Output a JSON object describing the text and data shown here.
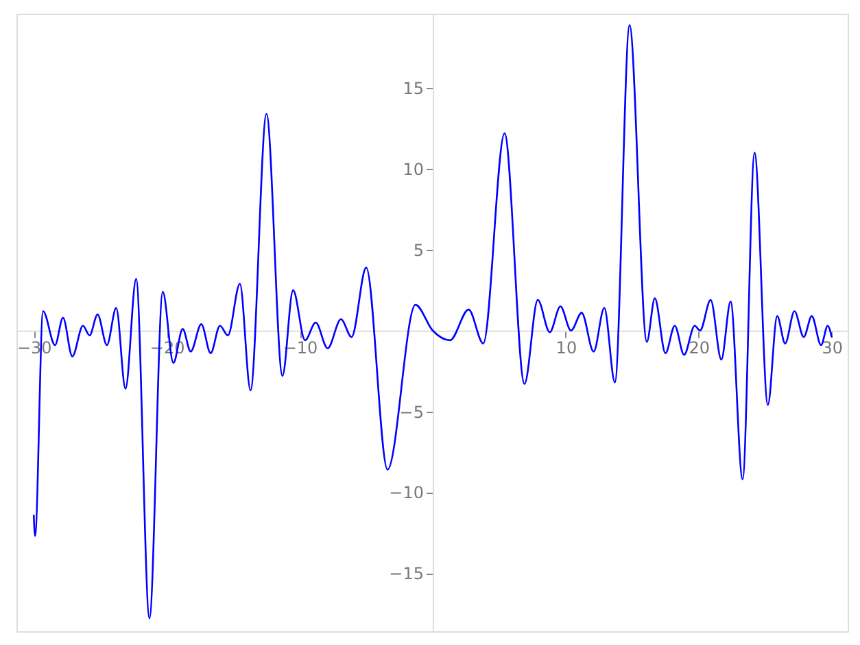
{
  "chart_data": {
    "type": "line",
    "xlim": [
      -31.3,
      31.2
    ],
    "ylim": [
      -18.6,
      19.6
    ],
    "xticks": [
      -30,
      -20,
      -10,
      10,
      20,
      30
    ],
    "yticks": [
      -15,
      -10,
      -5,
      5,
      10,
      15
    ],
    "grid": false,
    "marker": "none",
    "line_style": "solid",
    "series": [
      {
        "color": "#0000ff",
        "x": [
          -30,
          -29.9,
          -29.3,
          -28.4,
          -27.8,
          -27.1,
          -26.3,
          -25.8,
          -25.2,
          -24.5,
          -23.8,
          -23.1,
          -22.3,
          -21.3,
          -20.3,
          -19.5,
          -18.8,
          -18.2,
          -17.4,
          -16.7,
          -16.0,
          -15.4,
          -14.5,
          -13.7,
          -12.5,
          -11.3,
          -10.5,
          -9.6,
          -8.8,
          -7.9,
          -6.9,
          -6.1,
          -5.0,
          -3.4,
          -1.3,
          0,
          1.3,
          2.7,
          3.8,
          5.4,
          6.9,
          7.9,
          8.8,
          9.6,
          10.4,
          11.2,
          12.1,
          12.9,
          13.7,
          14.8,
          16.1,
          16.7,
          17.5,
          18.2,
          18.9,
          19.7,
          20.1,
          20.9,
          21.7,
          22.4,
          23.3,
          24.2,
          25.2,
          25.9,
          26.5,
          27.2,
          27.9,
          28.5,
          29.2,
          29.7,
          30
        ],
        "values": [
          -11.4,
          -12.7,
          1.2,
          -0.9,
          0.8,
          -1.6,
          0.3,
          -0.3,
          1.0,
          -0.9,
          1.4,
          -3.6,
          3.2,
          -17.8,
          2.4,
          -2.0,
          0.1,
          -1.3,
          0.4,
          -1.4,
          0.3,
          -0.3,
          2.9,
          -3.7,
          13.4,
          -2.8,
          2.5,
          -0.6,
          0.5,
          -1.1,
          0.7,
          -0.4,
          3.9,
          -8.6,
          1.6,
          0,
          -0.6,
          1.3,
          -0.8,
          12.2,
          -3.3,
          1.9,
          -0.1,
          1.5,
          0,
          1.1,
          -1.3,
          1.4,
          -3.2,
          18.9,
          -0.7,
          2.0,
          -1.4,
          0.3,
          -1.5,
          0.3,
          0,
          1.9,
          -1.8,
          1.8,
          -9.2,
          11.0,
          -4.6,
          0.9,
          -0.8,
          1.2,
          -0.4,
          0.9,
          -0.9,
          0.3,
          -0.4
        ]
      }
    ]
  }
}
